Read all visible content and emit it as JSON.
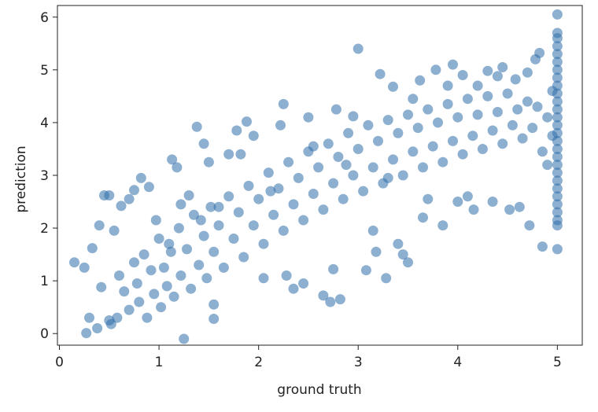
{
  "chart_data": {
    "type": "scatter",
    "title": "",
    "xlabel": "ground truth",
    "ylabel": "prediction",
    "xlim": [
      -0.02,
      5.25
    ],
    "ylim": [
      -0.22,
      6.22
    ],
    "xticks": [
      0,
      1,
      2,
      3,
      4,
      5
    ],
    "yticks": [
      0,
      1,
      2,
      3,
      4,
      5,
      6
    ],
    "xtick_labels": [
      "0",
      "1",
      "2",
      "3",
      "4",
      "5"
    ],
    "ytick_labels": [
      "0",
      "1",
      "2",
      "3",
      "4",
      "5",
      "6"
    ],
    "grid": false,
    "marker_color": "#2f6eaa",
    "marker_alpha": 0.55,
    "series": [
      {
        "points": [
          [
            0.15,
            1.35
          ],
          [
            0.27,
            0.01
          ],
          [
            0.25,
            1.25
          ],
          [
            0.3,
            0.3
          ],
          [
            0.33,
            1.62
          ],
          [
            0.4,
            2.05
          ],
          [
            0.38,
            0.1
          ],
          [
            0.42,
            0.88
          ],
          [
            0.45,
            2.62
          ],
          [
            0.5,
            2.62
          ],
          [
            0.5,
            0.25
          ],
          [
            0.55,
            1.95
          ],
          [
            0.62,
            2.42
          ],
          [
            0.7,
            2.55
          ],
          [
            0.75,
            2.72
          ],
          [
            0.82,
            2.95
          ],
          [
            0.9,
            2.78
          ],
          [
            0.97,
            2.15
          ],
          [
            1.1,
            1.7
          ],
          [
            1.13,
            3.3
          ],
          [
            1.18,
            3.15
          ],
          [
            1.22,
            2.45
          ],
          [
            1.25,
            -0.1
          ],
          [
            1.3,
            2.62
          ],
          [
            1.38,
            3.92
          ],
          [
            1.42,
            2.15
          ],
          [
            1.45,
            3.6
          ],
          [
            1.5,
            3.25
          ],
          [
            1.55,
            0.55
          ],
          [
            1.6,
            2.4
          ],
          [
            1.55,
            0.28
          ],
          [
            1.7,
            3.4
          ],
          [
            1.78,
            3.85
          ],
          [
            1.82,
            3.4
          ],
          [
            1.88,
            4.02
          ],
          [
            1.95,
            3.75
          ],
          [
            2.05,
            1.05
          ],
          [
            2.12,
            2.7
          ],
          [
            2.22,
            3.95
          ],
          [
            2.25,
            4.35
          ],
          [
            2.28,
            1.1
          ],
          [
            2.35,
            0.85
          ],
          [
            2.45,
            0.95
          ],
          [
            2.5,
            4.1
          ],
          [
            2.55,
            3.55
          ],
          [
            2.65,
            0.72
          ],
          [
            2.72,
            0.6
          ],
          [
            2.75,
            1.22
          ],
          [
            2.78,
            4.25
          ],
          [
            2.82,
            0.65
          ],
          [
            2.88,
            3.2
          ],
          [
            2.95,
            4.12
          ],
          [
            3.0,
            5.4
          ],
          [
            3.08,
            1.2
          ],
          [
            3.15,
            1.95
          ],
          [
            3.18,
            1.55
          ],
          [
            3.22,
            4.92
          ],
          [
            3.28,
            1.05
          ],
          [
            3.3,
            2.95
          ],
          [
            3.35,
            4.68
          ],
          [
            3.4,
            1.7
          ],
          [
            3.45,
            1.5
          ],
          [
            3.5,
            1.35
          ],
          [
            3.55,
            4.45
          ],
          [
            3.62,
            4.8
          ],
          [
            3.65,
            2.2
          ],
          [
            3.7,
            2.55
          ],
          [
            3.78,
            5.0
          ],
          [
            3.85,
            2.05
          ],
          [
            3.9,
            4.7
          ],
          [
            3.95,
            5.1
          ],
          [
            4.0,
            2.5
          ],
          [
            4.05,
            4.9
          ],
          [
            4.1,
            2.6
          ],
          [
            4.16,
            2.35
          ],
          [
            4.2,
            4.7
          ],
          [
            4.3,
            4.98
          ],
          [
            4.35,
            2.5
          ],
          [
            4.4,
            4.88
          ],
          [
            4.45,
            5.05
          ],
          [
            4.52,
            2.35
          ],
          [
            4.58,
            4.82
          ],
          [
            4.62,
            2.4
          ],
          [
            4.7,
            4.95
          ],
          [
            4.72,
            2.05
          ],
          [
            4.78,
            5.2
          ],
          [
            4.82,
            5.32
          ],
          [
            4.85,
            1.65
          ],
          [
            4.9,
            3.2
          ],
          [
            4.95,
            4.6
          ],
          [
            0.52,
            0.18
          ],
          [
            0.58,
            0.3
          ],
          [
            0.6,
            1.1
          ],
          [
            0.65,
            0.8
          ],
          [
            0.7,
            0.45
          ],
          [
            0.75,
            1.35
          ],
          [
            0.78,
            0.95
          ],
          [
            0.8,
            0.6
          ],
          [
            0.85,
            1.5
          ],
          [
            0.88,
            0.3
          ],
          [
            0.92,
            1.2
          ],
          [
            0.95,
            0.75
          ],
          [
            1.0,
            1.8
          ],
          [
            1.02,
            0.5
          ],
          [
            1.05,
            1.25
          ],
          [
            1.08,
            0.9
          ],
          [
            1.12,
            1.55
          ],
          [
            1.15,
            0.7
          ],
          [
            1.2,
            2.0
          ],
          [
            1.22,
            1.1
          ],
          [
            1.28,
            1.6
          ],
          [
            1.32,
            0.85
          ],
          [
            1.35,
            2.25
          ],
          [
            1.4,
            1.3
          ],
          [
            1.45,
            1.85
          ],
          [
            1.48,
            1.05
          ],
          [
            1.52,
            2.4
          ],
          [
            1.55,
            1.55
          ],
          [
            1.6,
            2.05
          ],
          [
            1.65,
            1.25
          ],
          [
            1.7,
            2.6
          ],
          [
            1.75,
            1.8
          ],
          [
            1.8,
            2.3
          ],
          [
            1.85,
            1.45
          ],
          [
            1.9,
            2.8
          ],
          [
            1.95,
            2.05
          ],
          [
            2.0,
            2.55
          ],
          [
            2.05,
            1.7
          ],
          [
            2.1,
            3.05
          ],
          [
            2.15,
            2.25
          ],
          [
            2.2,
            2.75
          ],
          [
            2.25,
            1.95
          ],
          [
            2.3,
            3.25
          ],
          [
            2.35,
            2.45
          ],
          [
            2.4,
            2.95
          ],
          [
            2.45,
            2.15
          ],
          [
            2.5,
            3.45
          ],
          [
            2.55,
            2.65
          ],
          [
            2.6,
            3.15
          ],
          [
            2.65,
            2.35
          ],
          [
            2.7,
            3.6
          ],
          [
            2.75,
            2.85
          ],
          [
            2.8,
            3.35
          ],
          [
            2.85,
            2.55
          ],
          [
            2.9,
            3.8
          ],
          [
            2.95,
            3.0
          ],
          [
            3.0,
            3.5
          ],
          [
            3.05,
            2.7
          ],
          [
            3.1,
            3.95
          ],
          [
            3.15,
            3.15
          ],
          [
            3.2,
            3.65
          ],
          [
            3.25,
            2.85
          ],
          [
            3.3,
            4.05
          ],
          [
            3.35,
            3.3
          ],
          [
            3.4,
            3.8
          ],
          [
            3.45,
            3.0
          ],
          [
            3.5,
            4.15
          ],
          [
            3.55,
            3.45
          ],
          [
            3.6,
            3.9
          ],
          [
            3.65,
            3.15
          ],
          [
            3.7,
            4.25
          ],
          [
            3.75,
            3.55
          ],
          [
            3.8,
            4.0
          ],
          [
            3.85,
            3.25
          ],
          [
            3.9,
            4.35
          ],
          [
            3.95,
            3.65
          ],
          [
            4.0,
            4.1
          ],
          [
            4.05,
            3.4
          ],
          [
            4.1,
            4.45
          ],
          [
            4.15,
            3.75
          ],
          [
            4.2,
            4.15
          ],
          [
            4.25,
            3.5
          ],
          [
            4.3,
            4.5
          ],
          [
            4.35,
            3.85
          ],
          [
            4.4,
            4.2
          ],
          [
            4.45,
            3.6
          ],
          [
            4.5,
            4.55
          ],
          [
            4.55,
            3.95
          ],
          [
            4.6,
            4.25
          ],
          [
            4.65,
            3.7
          ],
          [
            4.7,
            4.4
          ],
          [
            4.75,
            3.9
          ],
          [
            4.8,
            4.3
          ],
          [
            4.85,
            3.45
          ],
          [
            4.9,
            4.1
          ],
          [
            4.95,
            3.75
          ],
          [
            5.0,
            6.05
          ],
          [
            5.0,
            5.7
          ],
          [
            5.0,
            5.6
          ],
          [
            5.0,
            5.45
          ],
          [
            5.0,
            5.3
          ],
          [
            5.0,
            5.15
          ],
          [
            5.0,
            5.0
          ],
          [
            5.0,
            4.85
          ],
          [
            5.0,
            4.7
          ],
          [
            5.0,
            4.55
          ],
          [
            5.0,
            4.4
          ],
          [
            5.0,
            4.25
          ],
          [
            5.0,
            4.1
          ],
          [
            5.0,
            3.95
          ],
          [
            5.0,
            3.8
          ],
          [
            5.0,
            3.65
          ],
          [
            5.0,
            3.5
          ],
          [
            5.0,
            3.35
          ],
          [
            5.0,
            3.2
          ],
          [
            5.0,
            3.05
          ],
          [
            5.0,
            2.9
          ],
          [
            5.0,
            2.75
          ],
          [
            5.0,
            2.6
          ],
          [
            5.0,
            2.45
          ],
          [
            5.0,
            2.3
          ],
          [
            5.0,
            2.15
          ],
          [
            5.0,
            2.05
          ],
          [
            5.0,
            1.6
          ]
        ]
      }
    ]
  }
}
